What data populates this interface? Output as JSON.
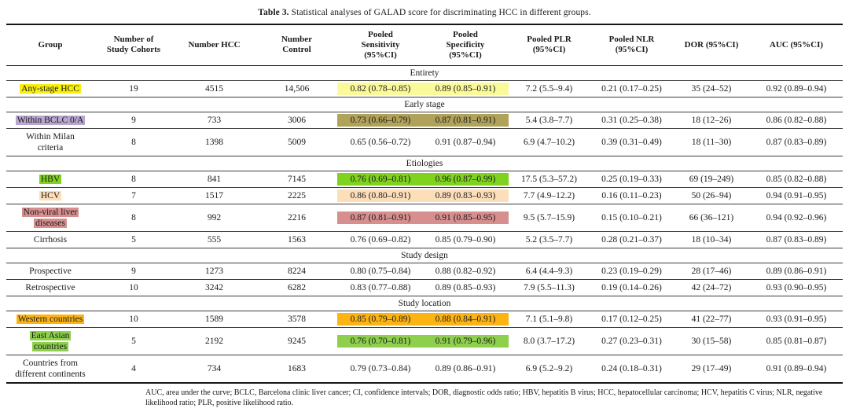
{
  "title": {
    "label": "Table 3.",
    "text": " Statistical analyses of GALAD score for discriminating HCC in different groups."
  },
  "header": {
    "columns": [
      "Group",
      "Number of\nStudy Cohorts",
      "Number HCC",
      "Number\nControl",
      "Pooled\nSensitivity\n(95%CI)",
      "Pooled\nSpecificity\n(95%CI)",
      "Pooled PLR\n(95%CI)",
      "Pooled NLR\n(95%CI)",
      "DOR (95%CI)",
      "AUC (95%CI)"
    ]
  },
  "highlight_colors": {
    "yellow": "#f7ef0f",
    "pale_yellow": "#fbfa9b",
    "lavender": "#b8a6d0",
    "olive": "#b0a259",
    "bright_green": "#7fd31f",
    "peach": "#fcdeb9",
    "rose": "#d78e8e",
    "amber": "#fcb415",
    "green": "#8ecf4d"
  },
  "sections": [
    {
      "label": "Entirety",
      "rows": [
        {
          "group": "Any-stage HCC",
          "group_highlight": "yellow",
          "cohorts": "19",
          "hcc": "4515",
          "control": "14,506",
          "sensitivity": "0.82 (0.78–0.85)",
          "specificity": "0.89 (0.85–0.91)",
          "senspec_highlight": "pale_yellow",
          "plr": "7.2 (5.5–9.4)",
          "nlr": "0.21 (0.17–0.25)",
          "dor": "35 (24–52)",
          "auc": "0.92 (0.89–0.94)"
        }
      ]
    },
    {
      "label": "Early stage",
      "rows": [
        {
          "group": "Within BCLC 0/A",
          "group_highlight": "lavender",
          "cohorts": "9",
          "hcc": "733",
          "control": "3006",
          "sensitivity": "0.73 (0.66–0.79)",
          "specificity": "0.87 (0.81–0.91)",
          "senspec_highlight": "olive",
          "plr": "5.4 (3.8–7.7)",
          "nlr": "0.31 (0.25–0.38)",
          "dor": "18 (12–26)",
          "auc": "0.86 (0.82–0.88)"
        },
        {
          "group": "Within Milan criteria",
          "group_highlight": null,
          "cohorts": "8",
          "hcc": "1398",
          "control": "5009",
          "sensitivity": "0.65 (0.56–0.72)",
          "specificity": "0.91 (0.87–0.94)",
          "senspec_highlight": null,
          "plr": "6.9 (4.7–10.2)",
          "nlr": "0.39 (0.31–0.49)",
          "dor": "18 (11–30)",
          "auc": "0.87 (0.83–0.89)"
        }
      ]
    },
    {
      "label": "Etiologies",
      "rows": [
        {
          "group": "HBV",
          "group_highlight": "bright_green",
          "cohorts": "8",
          "hcc": "841",
          "control": "7145",
          "sensitivity": "0.76 (0.69–0.81)",
          "specificity": "0.96 (0.87–0.99)",
          "senspec_highlight": "bright_green",
          "plr": "17.5 (5.3–57.2)",
          "nlr": "0.25 (0.19–0.33)",
          "dor": "69 (19–249)",
          "auc": "0.85 (0.82–0.88)"
        },
        {
          "group": "HCV",
          "group_highlight": "peach",
          "cohorts": "7",
          "hcc": "1517",
          "control": "2225",
          "sensitivity": "0.86 (0.80–0.91)",
          "specificity": "0.89 (0.83–0.93)",
          "senspec_highlight": "peach",
          "plr": "7.7 (4.9–12.2)",
          "nlr": "0.16 (0.11–0.23)",
          "dor": "50 (26–94)",
          "auc": "0.94 (0.91–0.95)"
        },
        {
          "group": "Non-viral liver diseases",
          "group_highlight": "rose",
          "cohorts": "8",
          "hcc": "992",
          "control": "2216",
          "sensitivity": "0.87 (0.81–0.91)",
          "specificity": "0.91 (0.85–0.95)",
          "senspec_highlight": "rose",
          "plr": "9.5 (5.7–15.9)",
          "nlr": "0.15 (0.10–0.21)",
          "dor": "66 (36–121)",
          "auc": "0.94 (0.92–0.96)"
        },
        {
          "group": "Cirrhosis",
          "group_highlight": null,
          "cohorts": "5",
          "hcc": "555",
          "control": "1563",
          "sensitivity": "0.76 (0.69–0.82)",
          "specificity": "0.85 (0.79–0.90)",
          "senspec_highlight": null,
          "plr": "5.2 (3.5–7.7)",
          "nlr": "0.28 (0.21–0.37)",
          "dor": "18 (10–34)",
          "auc": "0.87 (0.83–0.89)"
        }
      ]
    },
    {
      "label": "Study design",
      "rows": [
        {
          "group": "Prospective",
          "group_highlight": null,
          "cohorts": "9",
          "hcc": "1273",
          "control": "8224",
          "sensitivity": "0.80 (0.75–0.84)",
          "specificity": "0.88 (0.82–0.92)",
          "senspec_highlight": null,
          "plr": "6.4 (4.4–9.3)",
          "nlr": "0.23 (0.19–0.29)",
          "dor": "28 (17–46)",
          "auc": "0.89 (0.86–0.91)"
        },
        {
          "group": "Retrospective",
          "group_highlight": null,
          "cohorts": "10",
          "hcc": "3242",
          "control": "6282",
          "sensitivity": "0.83 (0.77–0.88)",
          "specificity": "0.89 (0.85–0.93)",
          "senspec_highlight": null,
          "plr": "7.9 (5.5–11.3)",
          "nlr": "0.19 (0.14–0.26)",
          "dor": "42 (24–72)",
          "auc": "0.93 (0.90–0.95)"
        }
      ]
    },
    {
      "label": "Study location",
      "rows": [
        {
          "group": "Western countries",
          "group_highlight": "amber",
          "cohorts": "10",
          "hcc": "1589",
          "control": "3578",
          "sensitivity": "0.85 (0.79–0.89)",
          "specificity": "0.88 (0.84–0.91)",
          "senspec_highlight": "amber",
          "plr": "7.1 (5.1–9.8)",
          "nlr": "0.17 (0.12–0.25)",
          "dor": "41 (22–77)",
          "auc": "0.93 (0.91–0.95)"
        },
        {
          "group": "East Asian countries",
          "group_highlight": "green",
          "cohorts": "5",
          "hcc": "2192",
          "control": "9245",
          "sensitivity": "0.76 (0.70–0.81)",
          "specificity": "0.91 (0.79–0.96)",
          "senspec_highlight": "green",
          "plr": "8.0 (3.7–17.2)",
          "nlr": "0.27 (0.23–0.31)",
          "dor": "30 (15–58)",
          "auc": "0.85 (0.81–0.87)"
        },
        {
          "group": "Countries from different continents",
          "group_highlight": null,
          "cohorts": "4",
          "hcc": "734",
          "control": "1683",
          "sensitivity": "0.79 (0.73–0.84)",
          "specificity": "0.89 (0.86–0.91)",
          "senspec_highlight": null,
          "plr": "6.9 (5.2–9.2)",
          "nlr": "0.24 (0.18–0.31)",
          "dor": "29 (17–49)",
          "auc": "0.91 (0.89–0.94)"
        }
      ]
    }
  ],
  "footnote": "AUC, area under the curve; BCLC, Barcelona clinic liver cancer; CI, confidence intervals; DOR, diagnostic odds ratio; HBV, hepatitis B virus; HCC, hepatocellular carcinoma; HCV, hepatitis C virus; NLR, negative likelihood ratio; PLR, positive likelihood ratio."
}
